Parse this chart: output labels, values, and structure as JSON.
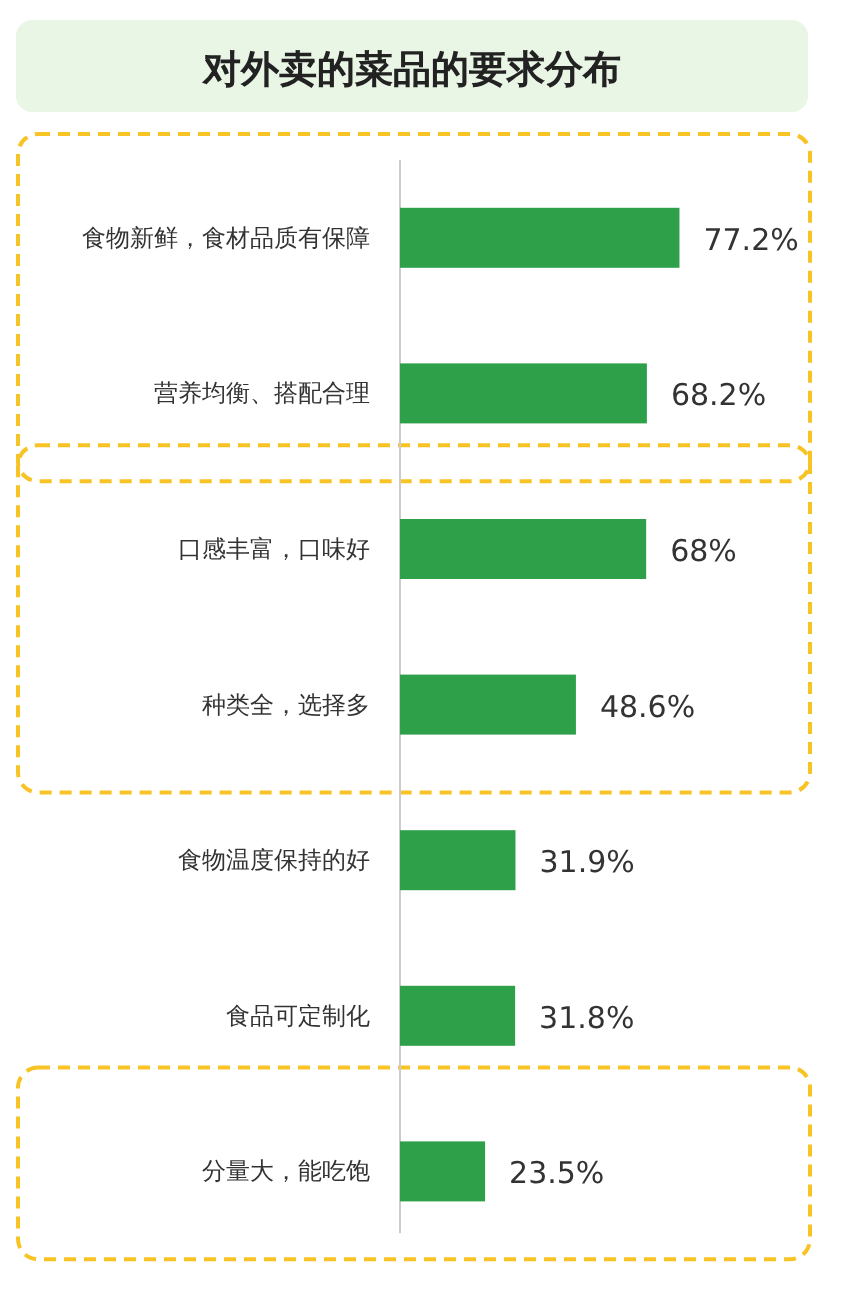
{
  "chart_data": {
    "type": "bar",
    "orientation": "horizontal",
    "title": "对外卖的菜品的要求分布",
    "categories": [
      "食物新鲜，食材品质有保障",
      "营养均衡、搭配合理",
      "口感丰富，口味好",
      "种类全，选择多",
      "食物温度保持的好",
      "食品可定制化",
      "分量大，能吃饱"
    ],
    "values": [
      77.2,
      68.2,
      68,
      48.6,
      31.9,
      31.8,
      23.5
    ],
    "value_labels": [
      "77.2%",
      "68.2%",
      "68%",
      "48.6%",
      "31.9%",
      "31.8%",
      "23.5%"
    ],
    "color": "#2ea04a"
  }
}
